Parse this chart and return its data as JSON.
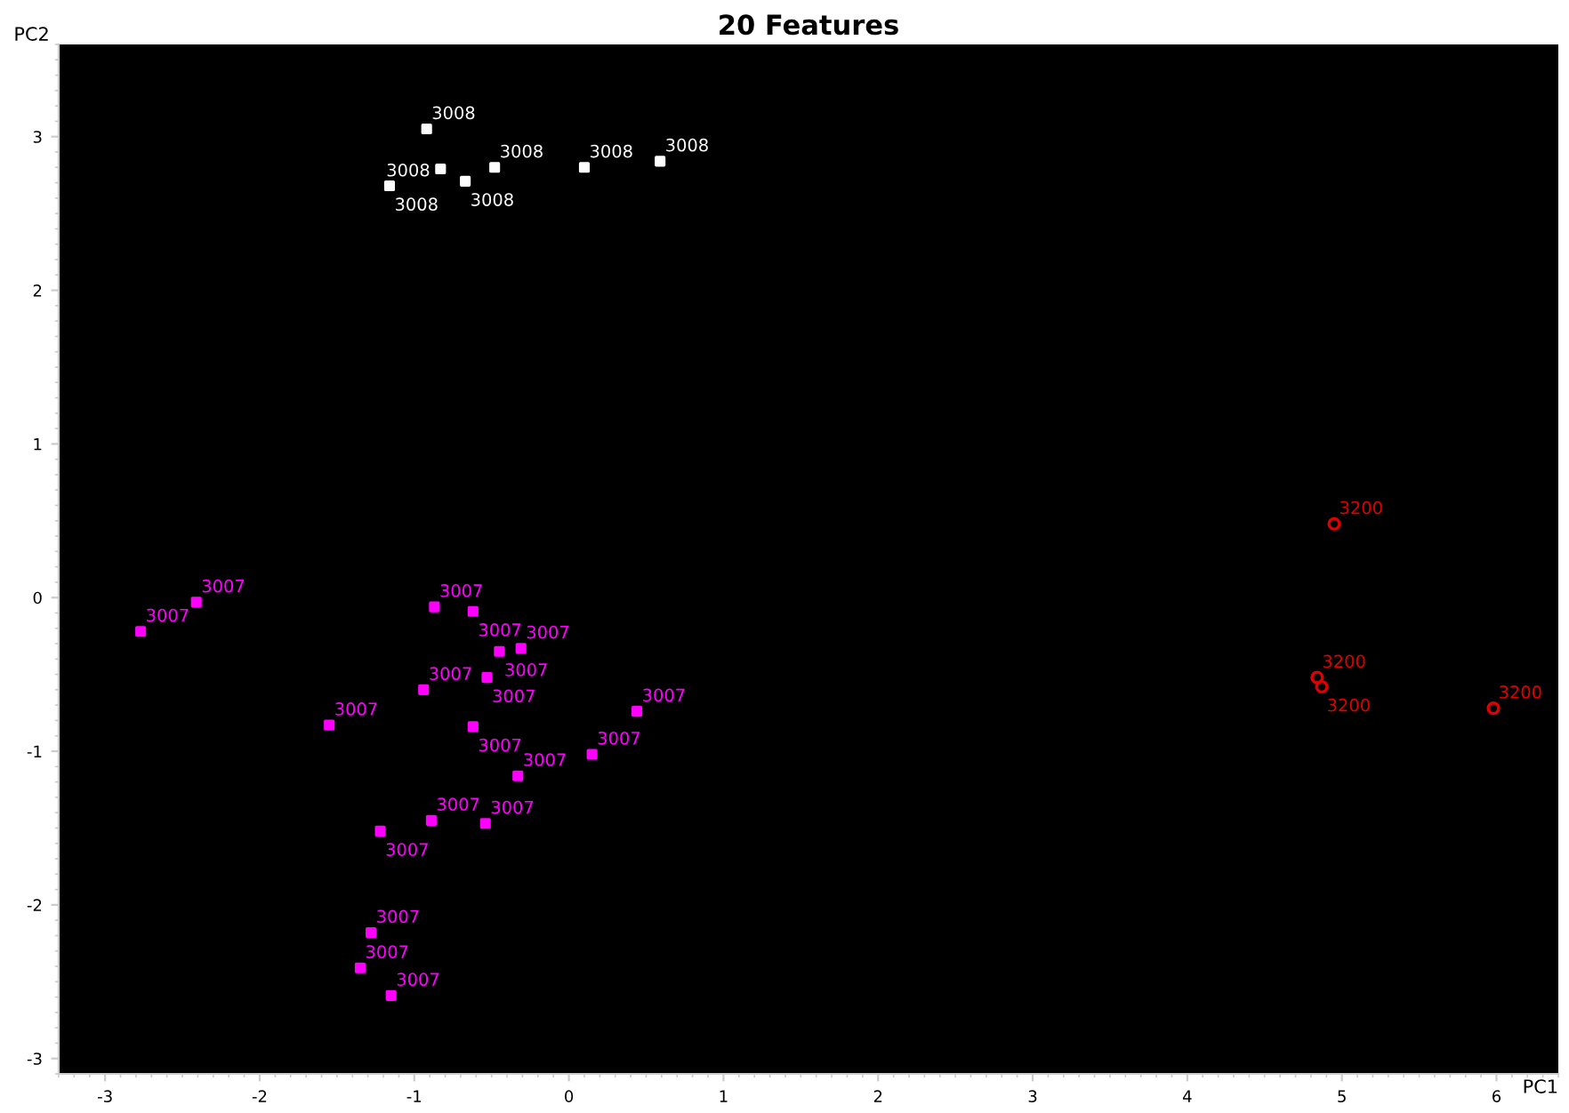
{
  "chart_data": {
    "type": "scatter",
    "title": "20 Features",
    "xlabel": "PC1",
    "ylabel": "PC2",
    "xlim": [
      -3.3,
      6.4
    ],
    "ylim": [
      -3.1,
      3.6
    ],
    "xticks": [
      -3,
      -2,
      -1,
      0,
      1,
      2,
      3,
      4,
      5,
      6
    ],
    "yticks": [
      -3,
      -2,
      -1,
      0,
      1,
      2,
      3
    ],
    "grid": false,
    "legend": false,
    "series": [
      {
        "name": "3008",
        "color": "#ffffff",
        "marker": "square",
        "x": [
          -0.92,
          -0.83,
          -0.48,
          0.1,
          0.59,
          -1.16,
          -0.67
        ],
        "values": [
          3.05,
          2.79,
          2.8,
          2.8,
          2.84,
          2.68,
          2.71
        ]
      },
      {
        "name": "3007",
        "color": "#ff00ff",
        "marker": "square",
        "x": [
          -2.41,
          -2.77,
          -0.87,
          -0.62,
          -0.45,
          -0.31,
          -0.53,
          -0.94,
          -1.55,
          -0.62,
          0.44,
          0.15,
          -0.33,
          -0.89,
          -0.54,
          -1.22,
          -1.28,
          -1.35,
          -1.15
        ],
        "values": [
          -0.03,
          -0.22,
          -0.06,
          -0.09,
          -0.35,
          -0.33,
          -0.52,
          -0.6,
          -0.83,
          -0.84,
          -0.74,
          -1.02,
          -1.16,
          -1.45,
          -1.47,
          -1.52,
          -2.18,
          -2.41,
          -2.59
        ]
      },
      {
        "name": "3200",
        "color": "#e00000",
        "marker": "circle",
        "x": [
          4.95,
          4.84,
          4.87,
          5.98
        ],
        "values": [
          0.48,
          -0.52,
          -0.58,
          -0.72
        ]
      }
    ]
  }
}
